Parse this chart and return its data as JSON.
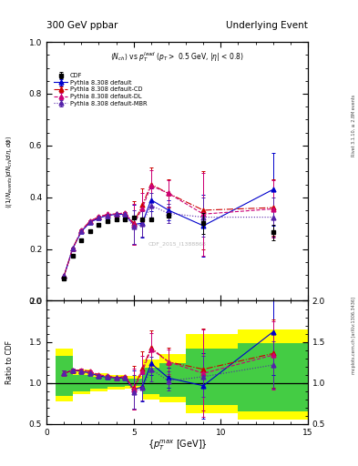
{
  "title_left": "300 GeV ppbar",
  "title_right": "Underlying Event",
  "plot_label": "CDF_2015_I1388868",
  "right_label1": "Rivet 3.1.10, ≥ 2.8M events",
  "right_label2": "mcplots.cern.ch [arXiv:1306.3436]",
  "xlabel": "{p_{T}^{max} [GeV]}",
  "xlim": [
    0,
    15
  ],
  "ylim_main": [
    0,
    1.0
  ],
  "ylim_ratio": [
    0.5,
    2.0
  ],
  "cdf_x": [
    1.0,
    1.5,
    2.0,
    2.5,
    3.0,
    3.5,
    4.0,
    4.5,
    5.0,
    5.5,
    6.0,
    7.0,
    9.0,
    13.0
  ],
  "cdf_y": [
    0.085,
    0.175,
    0.235,
    0.27,
    0.295,
    0.308,
    0.315,
    0.315,
    0.32,
    0.315,
    0.315,
    0.33,
    0.3,
    0.265
  ],
  "cdf_yerr": [
    0.005,
    0.006,
    0.006,
    0.006,
    0.006,
    0.006,
    0.006,
    0.006,
    0.006,
    0.006,
    0.007,
    0.008,
    0.04,
    0.03
  ],
  "pythia_default_x": [
    1.0,
    1.5,
    2.0,
    2.5,
    3.0,
    3.5,
    4.0,
    4.5,
    5.0,
    5.5,
    6.0,
    7.0,
    9.0,
    13.0
  ],
  "pythia_default_y": [
    0.095,
    0.202,
    0.268,
    0.303,
    0.32,
    0.33,
    0.334,
    0.334,
    0.295,
    0.3,
    0.39,
    0.35,
    0.29,
    0.43
  ],
  "pythia_default_yerr": [
    0.003,
    0.003,
    0.003,
    0.003,
    0.003,
    0.003,
    0.003,
    0.003,
    0.075,
    0.055,
    0.045,
    0.04,
    0.12,
    0.14
  ],
  "pythia_cd_x": [
    1.0,
    1.5,
    2.0,
    2.5,
    3.0,
    3.5,
    4.0,
    4.5,
    5.0,
    5.5,
    6.0,
    7.0,
    9.0,
    13.0
  ],
  "pythia_cd_y": [
    0.095,
    0.202,
    0.272,
    0.308,
    0.324,
    0.334,
    0.335,
    0.34,
    0.3,
    0.37,
    0.45,
    0.415,
    0.35,
    0.36
  ],
  "pythia_cd_yerr": [
    0.003,
    0.003,
    0.003,
    0.003,
    0.003,
    0.003,
    0.003,
    0.003,
    0.085,
    0.065,
    0.065,
    0.055,
    0.15,
    0.11
  ],
  "pythia_dl_x": [
    1.0,
    1.5,
    2.0,
    2.5,
    3.0,
    3.5,
    4.0,
    4.5,
    5.0,
    5.5,
    6.0,
    7.0,
    9.0,
    13.0
  ],
  "pythia_dl_y": [
    0.095,
    0.202,
    0.272,
    0.308,
    0.324,
    0.334,
    0.335,
    0.34,
    0.295,
    0.358,
    0.445,
    0.415,
    0.335,
    0.355
  ],
  "pythia_dl_yerr": [
    0.003,
    0.003,
    0.003,
    0.003,
    0.003,
    0.003,
    0.003,
    0.003,
    0.08,
    0.06,
    0.06,
    0.05,
    0.16,
    0.11
  ],
  "pythia_mbr_x": [
    1.0,
    1.5,
    2.0,
    2.5,
    3.0,
    3.5,
    4.0,
    4.5,
    5.0,
    5.5,
    6.0,
    7.0,
    9.0,
    13.0
  ],
  "pythia_mbr_y": [
    0.095,
    0.202,
    0.268,
    0.303,
    0.32,
    0.33,
    0.334,
    0.334,
    0.285,
    0.298,
    0.368,
    0.338,
    0.323,
    0.323
  ],
  "pythia_mbr_yerr": [
    0.003,
    0.003,
    0.003,
    0.003,
    0.003,
    0.003,
    0.003,
    0.003,
    0.065,
    0.05,
    0.048,
    0.038,
    0.075,
    0.075
  ],
  "color_default": "#0000cc",
  "color_cd": "#cc0000",
  "color_dl": "#cc0077",
  "color_mbr": "#5522aa",
  "color_cdf": "#000000",
  "band_edges": [
    0.5,
    1.5,
    2.5,
    3.5,
    4.5,
    5.5,
    6.5,
    8.0,
    11.0,
    15.0
  ],
  "band_yellow_lo": [
    0.78,
    0.86,
    0.9,
    0.92,
    0.93,
    0.8,
    0.77,
    0.63,
    0.55
  ],
  "band_yellow_hi": [
    1.42,
    1.16,
    1.12,
    1.1,
    1.09,
    1.28,
    1.35,
    1.6,
    1.65
  ],
  "band_green_lo": [
    0.84,
    0.9,
    0.93,
    0.95,
    0.96,
    0.86,
    0.83,
    0.73,
    0.65
  ],
  "band_green_hi": [
    1.33,
    1.1,
    1.08,
    1.06,
    1.05,
    1.19,
    1.24,
    1.42,
    1.48
  ]
}
